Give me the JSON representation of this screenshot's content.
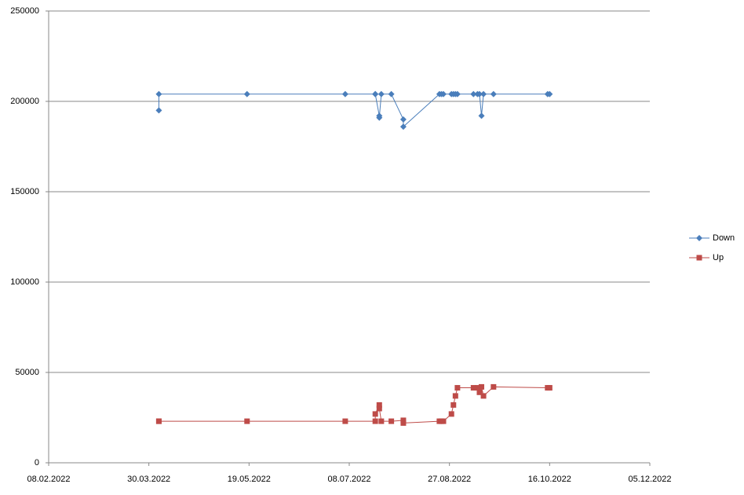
{
  "chart_data": {
    "type": "line",
    "x": [
      "2022-04-04",
      "2022-04-04",
      "2022-05-18",
      "2022-07-06",
      "2022-07-21",
      "2022-07-21",
      "2022-07-23",
      "2022-07-23",
      "2022-07-24",
      "2022-07-29",
      "2022-08-04",
      "2022-08-04",
      "2022-08-22",
      "2022-08-23",
      "2022-08-24",
      "2022-08-28",
      "2022-08-29",
      "2022-08-30",
      "2022-08-31",
      "2022-09-08",
      "2022-09-10",
      "2022-09-11",
      "2022-09-12",
      "2022-09-13",
      "2022-09-18",
      "2022-10-15",
      "2022-10-16"
    ],
    "series": [
      {
        "name": "Down",
        "color": "#4a7ebb",
        "marker": "diamond",
        "values": [
          195000,
          204000,
          204000,
          204000,
          204000,
          204000,
          192000,
          191000,
          204000,
          204000,
          190000,
          186000,
          204000,
          204000,
          204000,
          204000,
          204000,
          204000,
          204000,
          204000,
          204000,
          204000,
          192000,
          204000,
          204000,
          204000,
          204000
        ]
      },
      {
        "name": "Up",
        "color": "#be4b48",
        "marker": "square",
        "values": [
          23000,
          23000,
          23000,
          23000,
          23000,
          27000,
          32000,
          30000,
          23000,
          23000,
          23500,
          22000,
          23000,
          23000,
          23000,
          27000,
          32000,
          37000,
          41500,
          41500,
          41500,
          39000,
          42000,
          37000,
          42000,
          41500,
          41500
        ]
      }
    ],
    "xlim": [
      "2022-02-08",
      "2022-12-05"
    ],
    "xticks": [
      {
        "value": "2022-02-08",
        "label": "08.02.2022"
      },
      {
        "value": "2022-03-30",
        "label": "30.03.2022"
      },
      {
        "value": "2022-05-19",
        "label": "19.05.2022"
      },
      {
        "value": "2022-07-08",
        "label": "08.07.2022"
      },
      {
        "value": "2022-08-27",
        "label": "27.08.2022"
      },
      {
        "value": "2022-10-16",
        "label": "16.10.2022"
      },
      {
        "value": "2022-12-05",
        "label": "05.12.2022"
      }
    ],
    "ylim": [
      0,
      250000
    ],
    "yticks": [
      0,
      50000,
      100000,
      150000,
      200000,
      250000
    ],
    "grid": true,
    "legend": "right"
  }
}
